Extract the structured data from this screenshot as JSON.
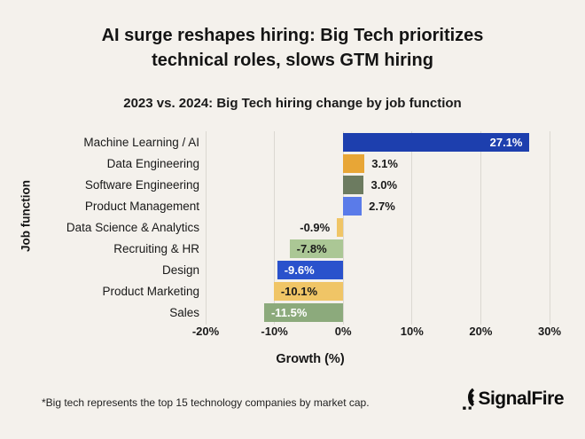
{
  "header": {
    "title": "AI surge reshapes hiring: Big Tech prioritizes technical roles, slows GTM hiring",
    "subtitle": "2023 vs. 2024: Big Tech hiring change by job function"
  },
  "chart_data": {
    "type": "bar",
    "orientation": "horizontal",
    "title": "2023 vs. 2024: Big Tech hiring change by job function",
    "xlabel": "Growth (%)",
    "ylabel": "Job function",
    "xlim": [
      -20,
      30
    ],
    "grid": true,
    "categories": [
      "Machine Learning / AI",
      "Data Engineering",
      "Software Engineering",
      "Product Management",
      "Data Science & Analytics",
      "Recruiting & HR",
      "Design",
      "Product Marketing",
      "Sales"
    ],
    "values": [
      27.1,
      3.1,
      3.0,
      2.7,
      -0.9,
      -7.8,
      -9.6,
      -10.1,
      -11.5
    ],
    "xticks": [
      {
        "value": -20,
        "label": "-20%"
      },
      {
        "value": -10,
        "label": "-10%"
      },
      {
        "value": 0,
        "label": "0%"
      },
      {
        "value": 10,
        "label": "10%"
      },
      {
        "value": 20,
        "label": "20%"
      },
      {
        "value": 30,
        "label": "30%"
      }
    ],
    "bars": [
      {
        "category": "Machine Learning / AI",
        "value": 27.1,
        "label": "27.1%",
        "color": "#1d3fae",
        "label_placement": "inside-right",
        "label_color": "#ffffff"
      },
      {
        "category": "Data Engineering",
        "value": 3.1,
        "label": "3.1%",
        "color": "#e8a636",
        "label_placement": "outside-right",
        "label_color": "#1a1a1a"
      },
      {
        "category": "Software Engineering",
        "value": 3.0,
        "label": "3.0%",
        "color": "#6c7b60",
        "label_placement": "outside-right",
        "label_color": "#1a1a1a"
      },
      {
        "category": "Product Management",
        "value": 2.7,
        "label": "2.7%",
        "color": "#5a7be9",
        "label_placement": "outside-right",
        "label_color": "#1a1a1a"
      },
      {
        "category": "Data Science & Analytics",
        "value": -0.9,
        "label": "-0.9%",
        "color": "#f0c566",
        "label_placement": "outside-left",
        "label_color": "#1a1a1a"
      },
      {
        "category": "Recruiting & HR",
        "value": -7.8,
        "label": "-7.8%",
        "color": "#abc795",
        "label_placement": "inside-left",
        "label_color": "#1a1a1a"
      },
      {
        "category": "Design",
        "value": -9.6,
        "label": "-9.6%",
        "color": "#2a52cc",
        "label_placement": "inside-left",
        "label_color": "#ffffff"
      },
      {
        "category": "Product Marketing",
        "value": -10.1,
        "label": "-10.1%",
        "color": "#f0c566",
        "label_placement": "inside-left",
        "label_color": "#1a1a1a"
      },
      {
        "category": "Sales",
        "value": -11.5,
        "label": "-11.5%",
        "color": "#8caa7c",
        "label_placement": "inside-left",
        "label_color": "#ffffff"
      }
    ]
  },
  "footer": {
    "note": "*Big tech represents the top 15 technology companies by market cap.",
    "brand": "SignalFire"
  },
  "colors": {
    "background": "#f4f1ec",
    "gridline": "#dbd8d1",
    "text": "#191919"
  }
}
